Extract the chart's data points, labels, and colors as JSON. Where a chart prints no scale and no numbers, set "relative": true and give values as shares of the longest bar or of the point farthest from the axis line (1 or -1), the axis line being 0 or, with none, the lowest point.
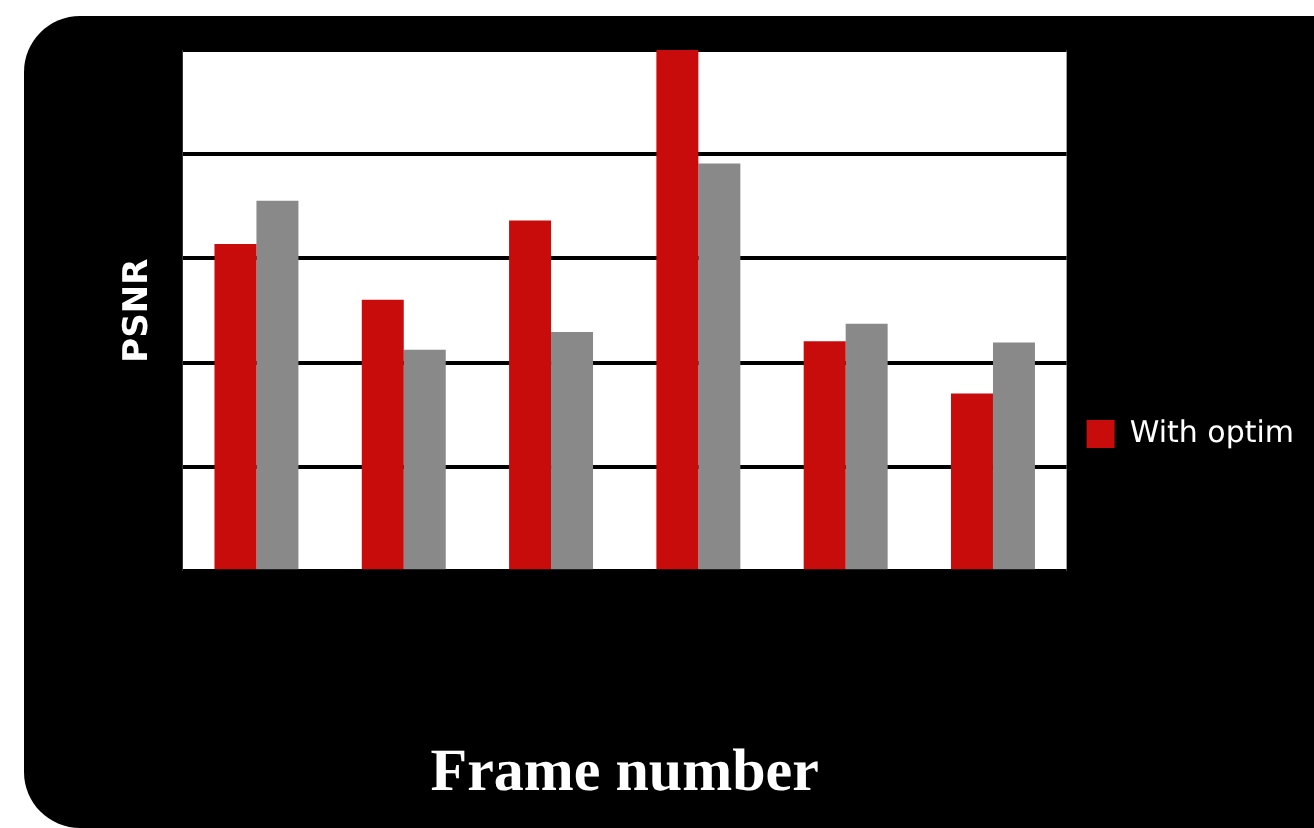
{
  "chart_data": {
    "type": "bar",
    "relative": true,
    "xlabel": "Frame number",
    "ylabel": "PSNR",
    "categories": [
      null,
      null,
      null,
      null,
      null,
      null
    ],
    "series": [
      {
        "name": "With optim",
        "color": "#c80c0c",
        "values": [
          0.628,
          0.521,
          0.673,
          1,
          0.441,
          0.341
        ]
      },
      {
        "color": "#898989",
        "values": [
          0.711,
          0.425,
          0.459,
          0.782,
          0.475,
          0.439
        ]
      }
    ],
    "grid": "y",
    "legend": "right"
  }
}
